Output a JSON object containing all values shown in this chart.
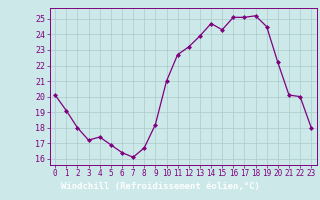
{
  "x": [
    0,
    1,
    2,
    3,
    4,
    5,
    6,
    7,
    8,
    9,
    10,
    11,
    12,
    13,
    14,
    15,
    16,
    17,
    18,
    19,
    20,
    21,
    22,
    23
  ],
  "y": [
    20.1,
    19.1,
    18.0,
    17.2,
    17.4,
    16.9,
    16.4,
    16.1,
    16.7,
    18.2,
    21.0,
    22.7,
    23.2,
    23.9,
    24.7,
    24.3,
    25.1,
    25.1,
    25.2,
    24.5,
    22.2,
    20.1,
    20.0,
    18.0
  ],
  "line_color": "#800080",
  "marker": "D",
  "marker_size": 2.0,
  "bg_color": "#cce8e8",
  "grid_color": "#aacccc",
  "xlabel": "Windchill (Refroidissement éolien,°C)",
  "xlabel_color": "#ffffff",
  "xlabel_bg": "#800080",
  "ylabel_ticks": [
    16,
    17,
    18,
    19,
    20,
    21,
    22,
    23,
    24,
    25
  ],
  "xlim": [
    -0.5,
    23.5
  ],
  "ylim": [
    15.6,
    25.7
  ],
  "tick_label_color": "#800080",
  "axis_color": "#800080",
  "tick_fontsize": 5.5,
  "ytick_fontsize": 6.0
}
